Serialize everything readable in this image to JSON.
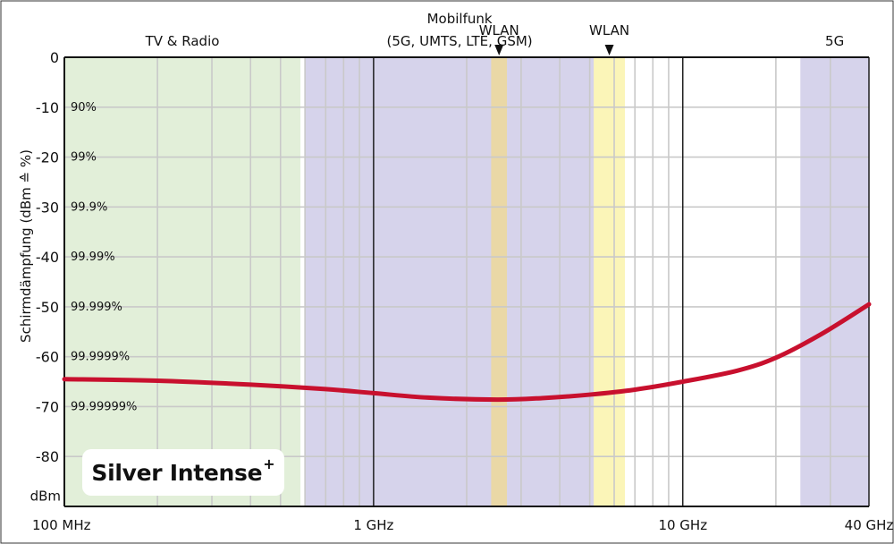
{
  "chart_data": {
    "type": "line",
    "xscale": "log",
    "ylabel": "Schirmdämpfung (dBm ≙ %)",
    "yunit": "dBm",
    "ylim": [
      -90,
      0
    ],
    "xlim_hz": [
      100000000,
      40000000000
    ],
    "yticks": [
      0,
      -10,
      -20,
      -30,
      -40,
      -50,
      -60,
      -70,
      -80
    ],
    "ytick_labels": [
      "0",
      "-10",
      "-20",
      "-30",
      "-40",
      "-50",
      "-60",
      "-70",
      "-80"
    ],
    "y_bottom_label": "dBm",
    "percent_labels": [
      {
        "y": -10,
        "text": "90%"
      },
      {
        "y": -20,
        "text": "99%"
      },
      {
        "y": -30,
        "text": "99.9%"
      },
      {
        "y": -40,
        "text": "99.99%"
      },
      {
        "y": -50,
        "text": "99.999%"
      },
      {
        "y": -60,
        "text": "99.9999%"
      },
      {
        "y": -70,
        "text": "99.99999%"
      }
    ],
    "xticks": [
      {
        "x": 100000000,
        "label": "100 MHz"
      },
      {
        "x": 1000000000,
        "label": "1 GHz"
      },
      {
        "x": 10000000000,
        "label": "10 GHz"
      },
      {
        "x": 40000000000,
        "label": "40 GHz"
      }
    ],
    "bands": [
      {
        "name": "TV & Radio",
        "label_lines": [
          "TV & Radio"
        ],
        "from": 100000000,
        "to": 580000000,
        "color": "#e2efd9"
      },
      {
        "name": "Mobilfunk",
        "label_lines": [
          "Mobilfunk",
          "(5G, UMTS, LTE, GSM)"
        ],
        "from": 600000000,
        "to": 6000000000,
        "color": "#d6d3eb"
      },
      {
        "name": "WLAN",
        "label_lines": [
          "WLAN"
        ],
        "from": 2400000000,
        "to": 2700000000,
        "color": "#ead8a6",
        "marker": true
      },
      {
        "name": "WLAN",
        "label_lines": [
          "WLAN"
        ],
        "from": 5150000000,
        "to": 6500000000,
        "color": "#fbf5b8",
        "marker": true
      },
      {
        "name": "5G",
        "label_lines": [
          "5G"
        ],
        "from": 24000000000,
        "to": 40000000000,
        "color": "#d6d3eb"
      }
    ],
    "series": [
      {
        "color": "#c8102e",
        "points": [
          {
            "x": 100000000,
            "y": -64.5
          },
          {
            "x": 200000000,
            "y": -64.8
          },
          {
            "x": 400000000,
            "y": -65.6
          },
          {
            "x": 700000000,
            "y": -66.5
          },
          {
            "x": 1000000000,
            "y": -67.3
          },
          {
            "x": 1500000000,
            "y": -68.2
          },
          {
            "x": 2500000000,
            "y": -68.6
          },
          {
            "x": 3500000000,
            "y": -68.3
          },
          {
            "x": 5000000000,
            "y": -67.6
          },
          {
            "x": 7000000000,
            "y": -66.6
          },
          {
            "x": 10000000000,
            "y": -65.0
          },
          {
            "x": 15000000000,
            "y": -62.8
          },
          {
            "x": 20000000000,
            "y": -60.2
          },
          {
            "x": 28000000000,
            "y": -55.5
          },
          {
            "x": 40000000000,
            "y": -49.5
          }
        ]
      }
    ],
    "grid": true
  },
  "product": {
    "name": "Silver Intense",
    "superscript": "+"
  }
}
